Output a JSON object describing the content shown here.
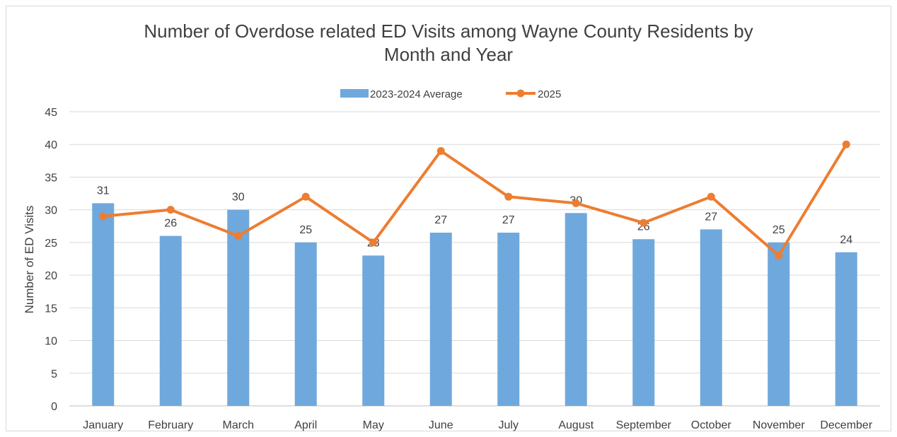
{
  "chart_data": {
    "type": "bar",
    "title_line1": "Number of Overdose related ED Visits among Wayne County Residents by",
    "title_line2": "Month and Year",
    "xlabel": "",
    "ylabel": "Number of ED Visits",
    "ylim": [
      0,
      45
    ],
    "yticks": [
      0,
      5,
      10,
      15,
      20,
      25,
      30,
      35,
      40,
      45
    ],
    "grid": true,
    "legend_position": "top",
    "categories": [
      "January",
      "February",
      "March",
      "April",
      "May",
      "June",
      "July",
      "August",
      "September",
      "October",
      "November",
      "December"
    ],
    "series": [
      {
        "name": "2023-2024 Average",
        "type": "bar",
        "color": "#6fa8dc",
        "values": [
          31,
          26,
          30,
          25,
          23,
          26.5,
          26.5,
          29.5,
          25.5,
          27,
          25,
          23.5
        ],
        "data_labels": [
          "31",
          "26",
          "30",
          "25",
          "23",
          "27",
          "27",
          "30",
          "26",
          "27",
          "25",
          "24"
        ]
      },
      {
        "name": "2025",
        "type": "line",
        "color": "#ed7d31",
        "values": [
          29,
          30,
          26,
          32,
          25,
          39,
          32,
          31,
          28,
          32,
          23,
          40
        ]
      }
    ]
  }
}
